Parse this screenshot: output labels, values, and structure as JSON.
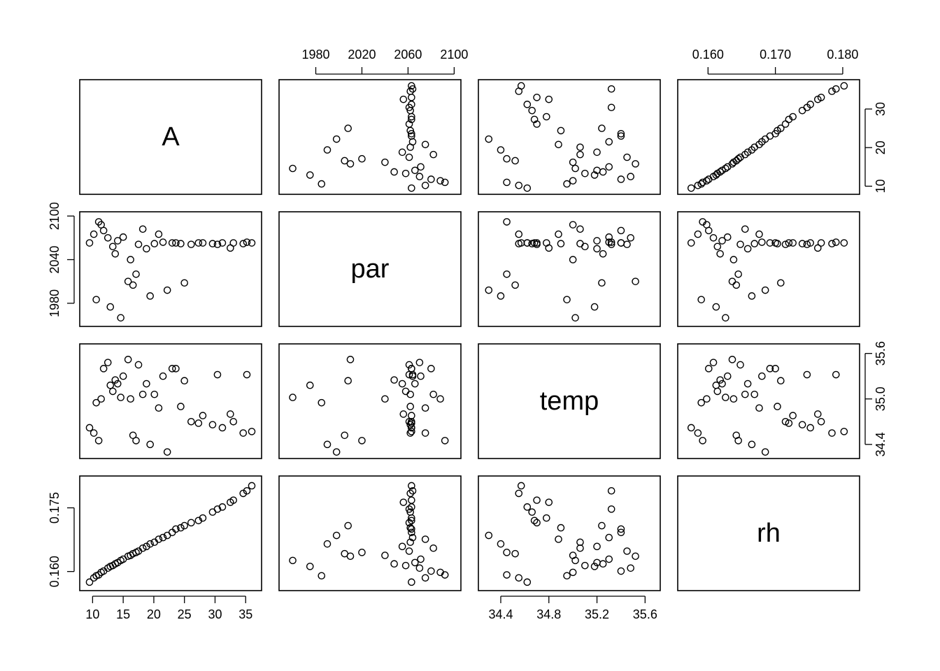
{
  "chart_data": {
    "type": "scatter",
    "title": "",
    "matrix": "pairs",
    "variables": [
      "A",
      "par",
      "temp",
      "rh"
    ],
    "ranges": {
      "A": [
        9,
        36.5
      ],
      "par": [
        1954,
        2100
      ],
      "temp": [
        34.27,
        35.67
      ],
      "rh": [
        0.1565,
        0.1815
      ]
    },
    "ticks": {
      "A": [
        10,
        15,
        20,
        25,
        30,
        35
      ],
      "A_right": [
        10,
        20,
        30
      ],
      "par_top": [
        1980,
        2020,
        2060,
        2100
      ],
      "par_left": [
        1980,
        2040,
        2100
      ],
      "temp_bottom": [
        34.4,
        34.8,
        35.2,
        35.6
      ],
      "temp_right": [
        34.4,
        35.0,
        35.6
      ],
      "rh_top": [
        0.16,
        0.17,
        0.18
      ],
      "rh_left": [
        0.16,
        0.175
      ]
    },
    "tick_labels": {
      "A_bottom": [
        "10",
        "15",
        "20",
        "25",
        "30",
        "35"
      ],
      "A_right": [
        "10",
        "20",
        "30"
      ],
      "par_top": [
        "1980",
        "2020",
        "2060",
        "2100"
      ],
      "par_left": [
        "1980",
        "2040",
        "2100"
      ],
      "temp_bottom": [
        "34.4",
        "34.8",
        "35.2",
        "35.6"
      ],
      "temp_right": [
        "34.4",
        "35.0",
        "35.6"
      ],
      "rh_top": [
        "0.160",
        "0.170",
        "0.180"
      ],
      "rh_left": [
        "0.160",
        "0.175"
      ]
    },
    "observations": {
      "A": [
        9.5,
        10.2,
        11.0,
        11.8,
        12.5,
        13.3,
        14.1,
        15.0,
        16.2,
        17.5,
        18.8,
        20.1,
        21.5,
        23.0,
        24.4,
        26.1,
        28.0,
        29.6,
        31.2,
        33.0,
        34.6,
        36.0,
        10.6,
        12.9,
        14.6,
        15.8,
        17.1,
        19.4,
        22.2,
        25.0,
        27.3,
        30.4,
        32.5,
        35.2,
        11.4,
        13.7,
        16.6,
        18.2,
        20.8,
        23.6
      ],
      "par": [
        2063,
        2075,
        2092,
        2080,
        2070,
        2058,
        2066,
        2071,
        2040,
        2061,
        2055,
        2062,
        2064,
        2063,
        2062,
        2061,
        2063,
        2062,
        2063,
        2063,
        2062,
        2063,
        1985,
        1975,
        1960,
        2010,
        2020,
        1990,
        1998,
        2008,
        2063,
        2061,
        2056,
        2064,
        2088,
        2048,
        2005,
        2082,
        2075,
        2063
      ],
      "temp": [
        34.62,
        34.55,
        34.45,
        35.4,
        35.48,
        35.1,
        35.2,
        35.3,
        35.0,
        35.45,
        35.2,
        35.06,
        35.3,
        35.4,
        34.9,
        34.7,
        34.78,
        34.66,
        34.62,
        34.7,
        34.55,
        34.57,
        34.95,
        35.18,
        35.02,
        35.52,
        34.45,
        34.4,
        34.3,
        35.24,
        34.68,
        35.32,
        34.8,
        35.32,
        35.0,
        35.25,
        34.52,
        35.06,
        34.88,
        35.4
      ],
      "rh": [
        0.1575,
        0.1585,
        0.1592,
        0.1601,
        0.1608,
        0.1614,
        0.1621,
        0.1629,
        0.1638,
        0.1648,
        0.1659,
        0.1669,
        0.168,
        0.1692,
        0.1703,
        0.1715,
        0.1726,
        0.174,
        0.1752,
        0.1768,
        0.1784,
        0.1802,
        0.159,
        0.1612,
        0.1626,
        0.1636,
        0.1645,
        0.1665,
        0.1685,
        0.1708,
        0.172,
        0.1747,
        0.1763,
        0.179,
        0.1598,
        0.1618,
        0.1642,
        0.1655,
        0.1676,
        0.17
      ]
    }
  }
}
